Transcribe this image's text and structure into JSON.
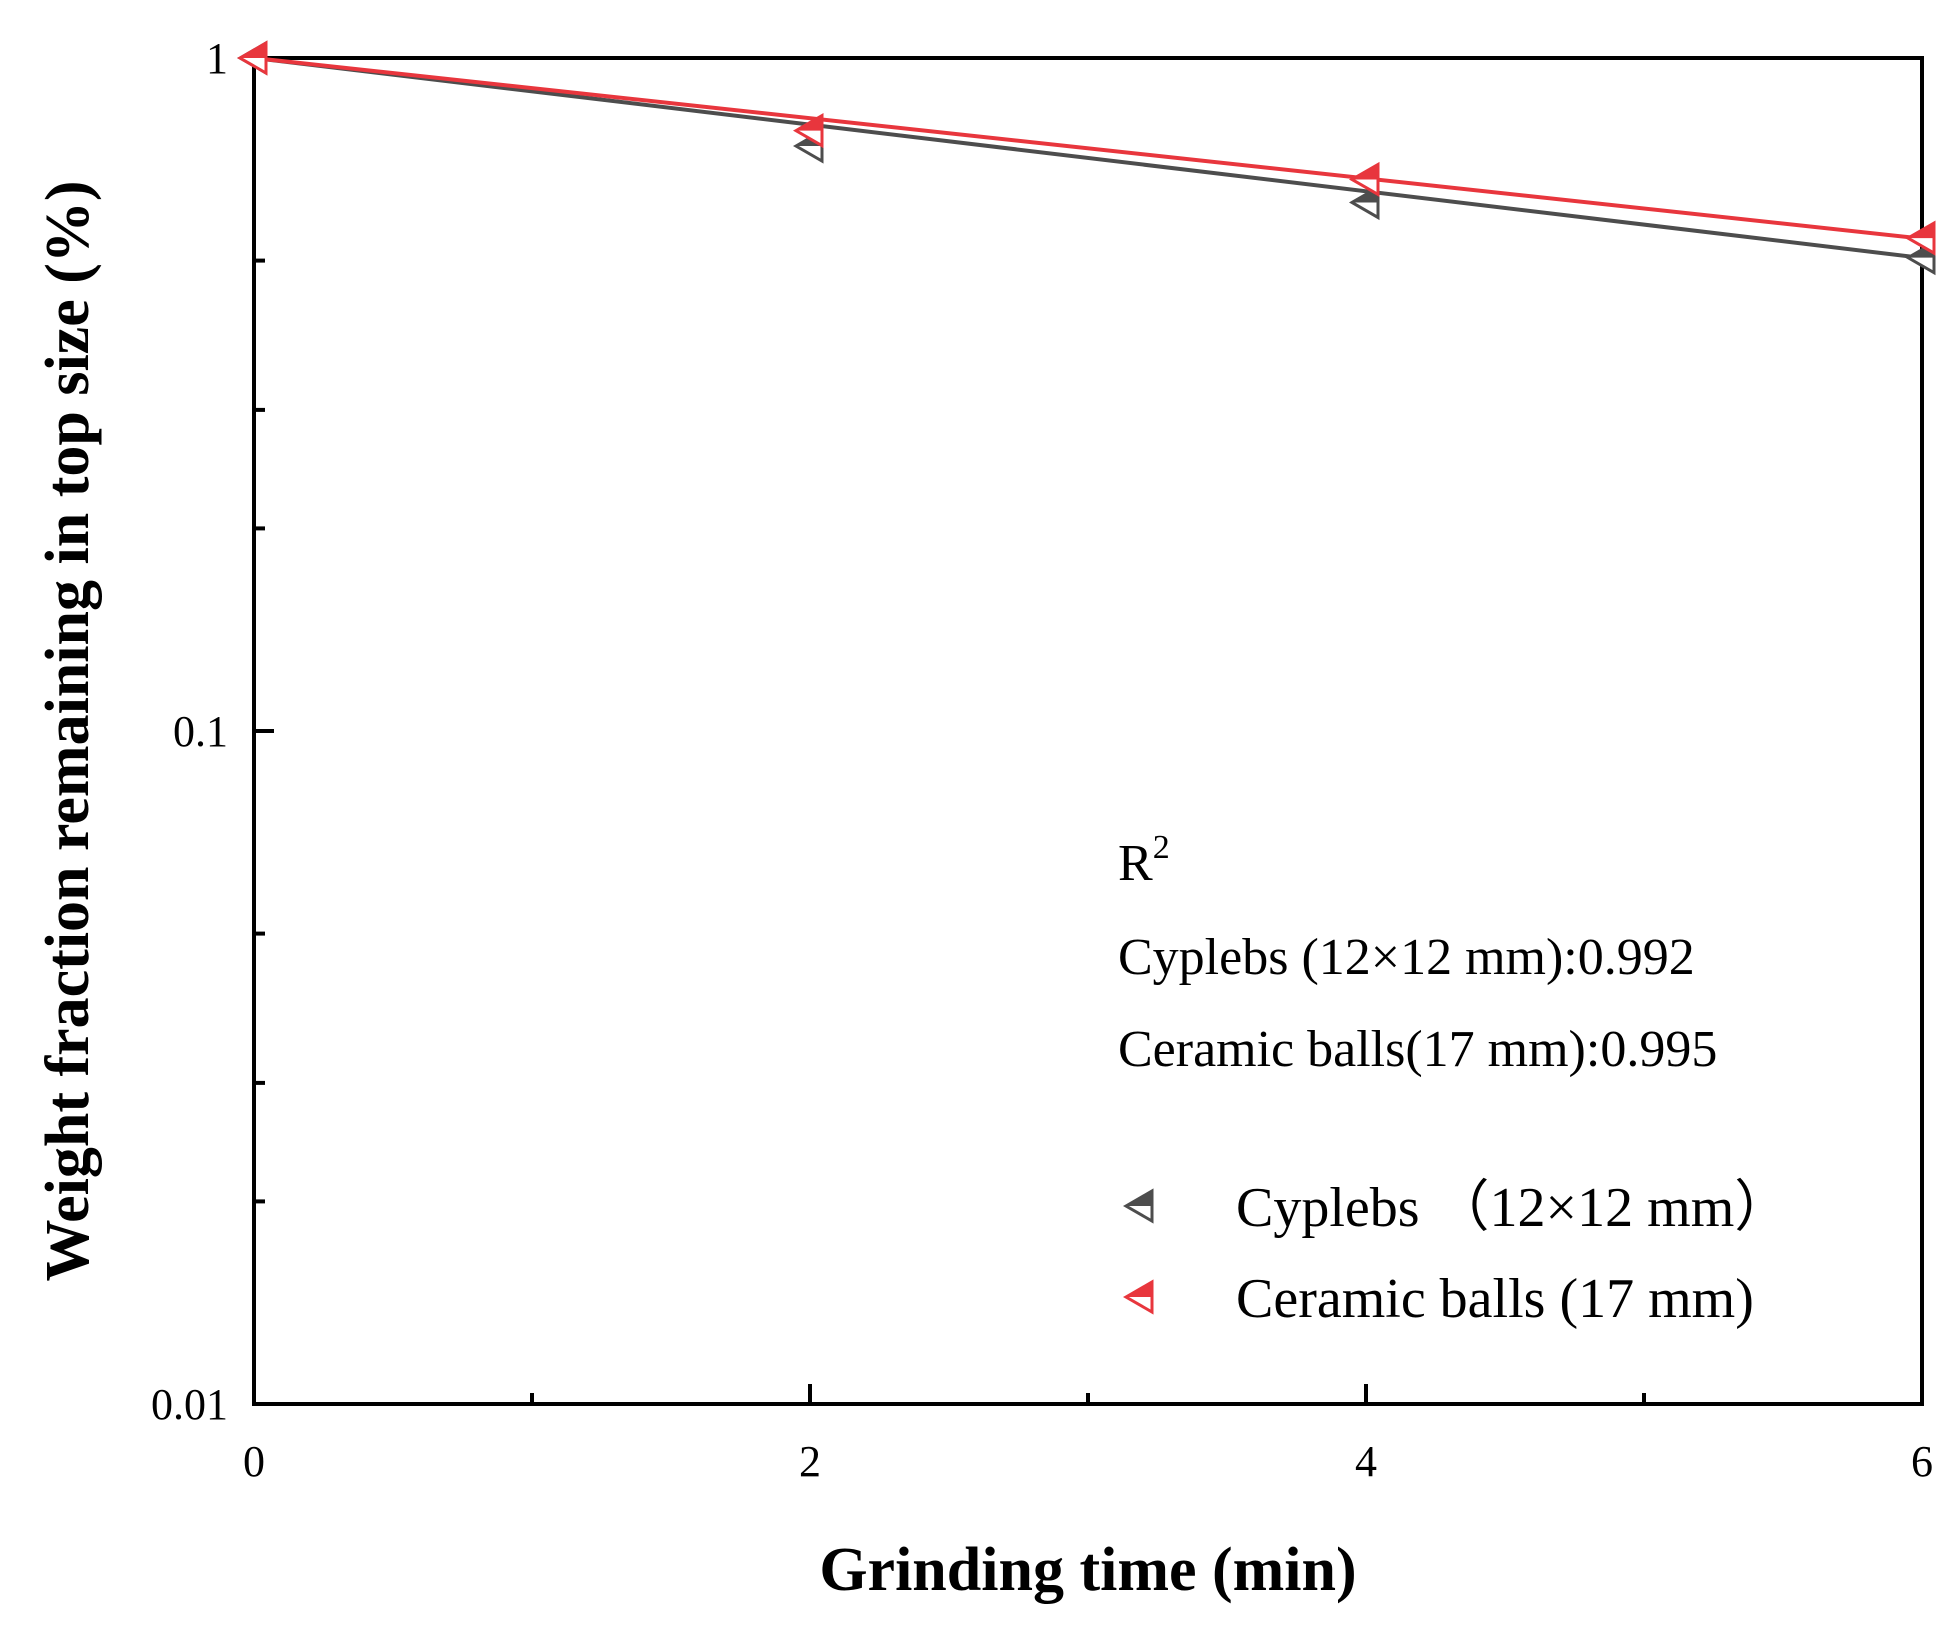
{
  "chart_data": {
    "type": "scatter",
    "title": "",
    "xlabel": "Grinding time (min)",
    "ylabel": "Weight fraction remaining in top size (%)",
    "xlim": [
      0,
      6
    ],
    "ylim": [
      0.01,
      1
    ],
    "yscale": "log",
    "x_ticks": [
      0,
      2,
      4,
      6
    ],
    "x_tick_labels": [
      "0",
      "2",
      "4",
      "6"
    ],
    "x_minor_ticks": [
      1,
      3,
      5
    ],
    "y_ticks": [
      0.01,
      0.1,
      1
    ],
    "y_tick_labels": [
      "0.01",
      "0.1",
      "1"
    ],
    "y_minor_ticks": [
      0.02,
      0.03,
      0.05,
      0.2,
      0.3,
      0.5
    ],
    "grid": false,
    "legend_position": "bottom-right",
    "series": [
      {
        "name": "Cyplebs （12×12 mm）",
        "color": "#4d4d4d",
        "marker": "left-triangle",
        "x": [
          0,
          2,
          4,
          6
        ],
        "y": [
          1.0,
          0.74,
          0.61,
          0.505
        ],
        "fit": {
          "intercept": 1.0,
          "rate": 0.114
        }
      },
      {
        "name": "Ceramic balls (17 mm)",
        "color": "#e8363d",
        "marker": "left-triangle",
        "x": [
          0,
          2,
          4,
          6
        ],
        "y": [
          1.0,
          0.78,
          0.66,
          0.54
        ],
        "fit": {
          "intercept": 1.0,
          "rate": 0.103
        }
      }
    ],
    "annotations": {
      "r2_label": "R",
      "r2_superscript": "2",
      "lines": [
        "Cyplebs (12×12 mm):0.992",
        "Ceramic balls(17 mm):0.995"
      ]
    }
  }
}
